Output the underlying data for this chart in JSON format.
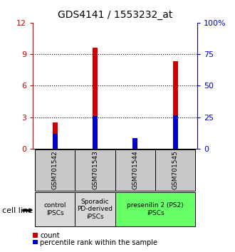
{
  "title": "GDS4141 / 1553232_at",
  "samples": [
    "GSM701542",
    "GSM701543",
    "GSM701544",
    "GSM701545"
  ],
  "red_values": [
    2.5,
    9.6,
    0.9,
    8.3
  ],
  "blue_values": [
    1.4,
    3.1,
    1.0,
    3.2
  ],
  "ylim_left": [
    0,
    12
  ],
  "ylim_right": [
    0,
    100
  ],
  "yticks_left": [
    0,
    3,
    6,
    9,
    12
  ],
  "yticks_right": [
    0,
    25,
    50,
    75,
    100
  ],
  "ytick_labels_left": [
    "0",
    "3",
    "6",
    "9",
    "12"
  ],
  "ytick_labels_right": [
    "0",
    "25",
    "50",
    "75",
    "100%"
  ],
  "groups": [
    {
      "label": "control\nIPSCs",
      "indices": [
        0
      ],
      "color": "#d8d8d8"
    },
    {
      "label": "Sporadic\nPD-derived\niPSCs",
      "indices": [
        1
      ],
      "color": "#d8d8d8"
    },
    {
      "label": "presenilin 2 (PS2)\niPSCs",
      "indices": [
        2,
        3
      ],
      "color": "#66ff66"
    }
  ],
  "cell_line_label": "cell line",
  "legend_count_label": "count",
  "legend_percentile_label": "percentile rank within the sample",
  "red_color": "#cc0000",
  "blue_color": "#0000cc",
  "bar_width": 0.12,
  "grid_color": "#000000",
  "bar_box_color": "#c8c8c8"
}
